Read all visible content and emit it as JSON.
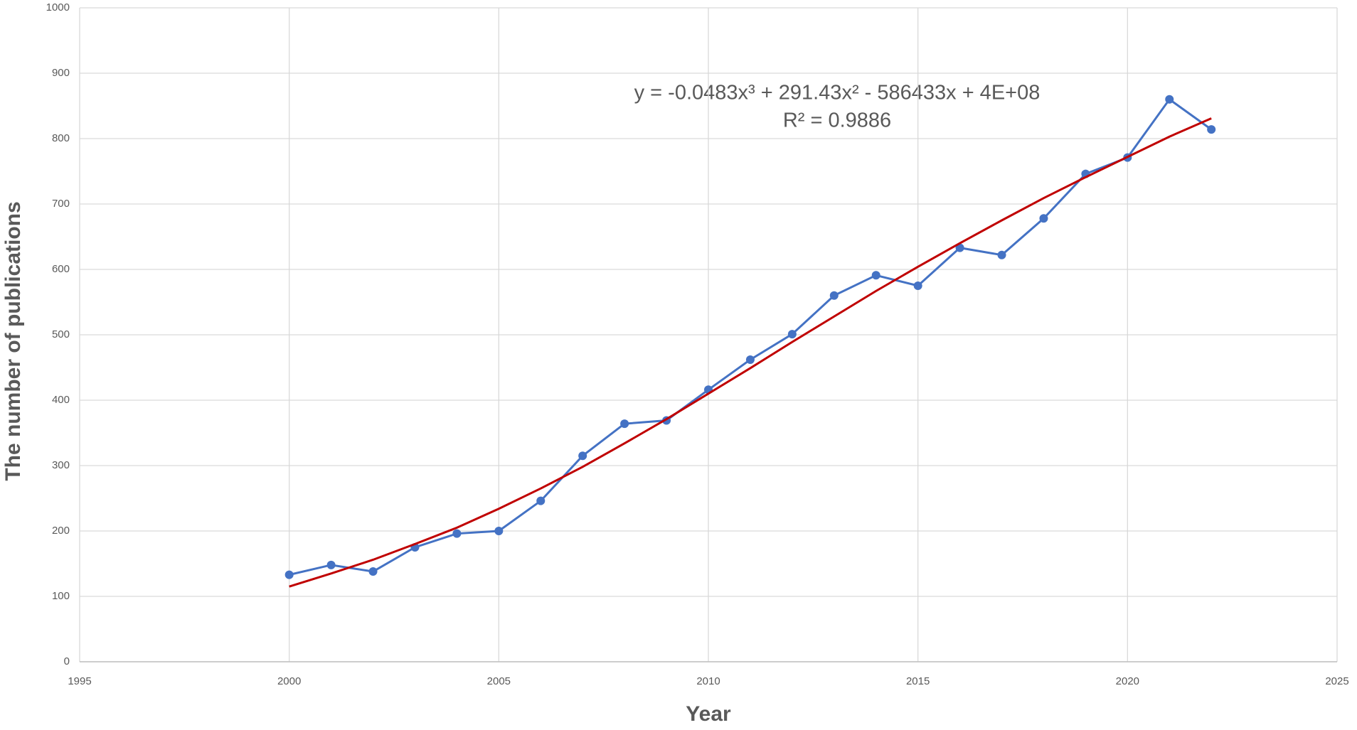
{
  "chart_data": {
    "type": "line",
    "x_label": "Year",
    "y_label": "The number of publications",
    "annotations": [
      "y = -0.0483x³ + 291.43x² - 586433x + 4E+08",
      "R² = 0.9886"
    ],
    "x": [
      2000,
      2001,
      2002,
      2003,
      2004,
      2005,
      2006,
      2007,
      2008,
      2009,
      2010,
      2011,
      2012,
      2013,
      2014,
      2015,
      2016,
      2017,
      2018,
      2019,
      2020,
      2021,
      2022
    ],
    "series": [
      {
        "color": "#4472c4",
        "markers": true,
        "values": [
          133,
          148,
          138,
          175,
          196,
          200,
          246,
          315,
          364,
          369,
          416,
          462,
          501,
          560,
          591,
          575,
          633,
          622,
          678,
          746,
          771,
          860,
          814
        ]
      },
      {
        "color": "#c00000",
        "markers": false,
        "values": [
          115,
          135,
          156,
          180,
          205,
          234,
          265,
          298,
          334,
          371,
          410,
          449,
          489,
          528,
          567,
          604,
          640,
          675,
          709,
          741,
          772,
          803,
          831
        ]
      }
    ],
    "xlim": [
      1995,
      2025
    ],
    "xticks": [
      1995,
      2000,
      2005,
      2010,
      2015,
      2020,
      2025
    ],
    "ylim": [
      0,
      1000
    ],
    "yticks": [
      0,
      100,
      200,
      300,
      400,
      500,
      600,
      700,
      800,
      900,
      1000
    ],
    "grid": true
  }
}
